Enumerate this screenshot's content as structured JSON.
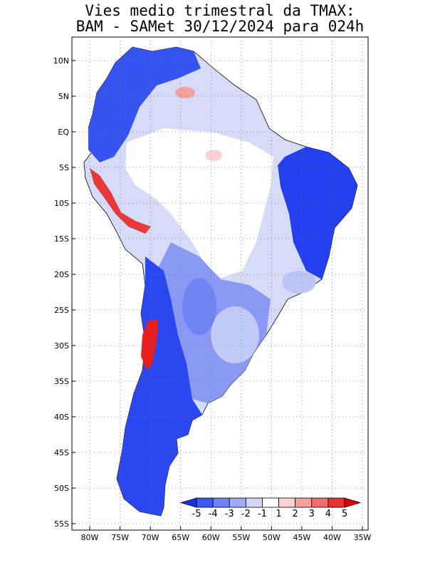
{
  "title": {
    "line1": "Vies medio trimestral da TMAX:",
    "line2": "BAM - SAMet 30/12/2024  para 024h"
  },
  "map": {
    "lat_labels": [
      "10N",
      "5N",
      "EQ",
      "5S",
      "10S",
      "15S",
      "20S",
      "25S",
      "30S",
      "35S",
      "40S",
      "45S",
      "50S",
      "55S"
    ],
    "lon_labels": [
      "80W",
      "75W",
      "70W",
      "65W",
      "60W",
      "55W",
      "50W",
      "45W",
      "40W",
      "35W"
    ],
    "lat_range": [
      -56,
      13
    ],
    "lon_range": [
      -83,
      -35
    ],
    "gridlines": "dotted"
  },
  "colorbar": {
    "tick_labels": [
      "-5",
      "-4",
      "-3",
      "-2",
      "-1",
      "1",
      "2",
      "3",
      "4",
      "5"
    ],
    "colors": [
      "#1432e6",
      "#3c5af0",
      "#6e82f5",
      "#a0aaf5",
      "#d2d7fa",
      "#ffffff",
      "#fad2d2",
      "#f5a0a0",
      "#f06e6e",
      "#e63232",
      "#dc0000"
    ]
  },
  "region_colors": {
    "strong_cold": "#1e3cf0",
    "cold": "#4a66f2",
    "moderate_cold": "#8696f5",
    "light_cold": "#c6cdf8",
    "neutral": "#ffffff",
    "warm": "#f58a8a",
    "hot": "#e61e1e"
  }
}
